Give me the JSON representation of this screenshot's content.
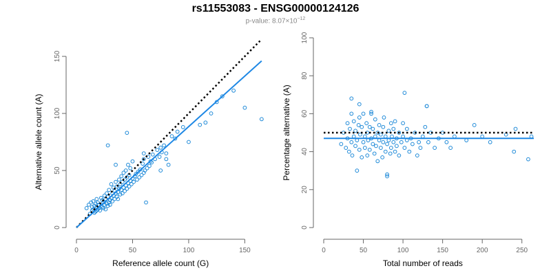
{
  "title": "rs11553083 - ENSG00000124126",
  "subtitle": {
    "prefix": "p-value: 8.07×10",
    "exponent": "−12"
  },
  "colors": {
    "points": "#1f8ad8",
    "fit": "#1e88e5",
    "reference": "#000000",
    "axis": "#666666"
  },
  "chart_data": [
    {
      "type": "scatter",
      "xlabel": "Reference allele count (G)",
      "ylabel": "Alternative allele count (A)",
      "xlim": [
        0,
        170
      ],
      "ylim": [
        0,
        150
      ],
      "xticks": [
        0,
        50,
        100,
        150
      ],
      "yticks": [
        0,
        50,
        100,
        150
      ],
      "series": [
        {
          "x": [
            9,
            11,
            12,
            13,
            14,
            14,
            15,
            15,
            16,
            16,
            17,
            17,
            18,
            18,
            18,
            19,
            19,
            20,
            20,
            21,
            22,
            22,
            23,
            23,
            24,
            24,
            25,
            25,
            26,
            26,
            27,
            27,
            28,
            28,
            29,
            29,
            30,
            30,
            31,
            31,
            32,
            32,
            33,
            33,
            34,
            34,
            35,
            35,
            36,
            36,
            37,
            37,
            38,
            38,
            39,
            39,
            40,
            40,
            41,
            41,
            42,
            42,
            43,
            43,
            44,
            44,
            45,
            45,
            46,
            46,
            47,
            47,
            48,
            48,
            49,
            50,
            50,
            51,
            52,
            53,
            54,
            55,
            56,
            57,
            58,
            59,
            60,
            60,
            61,
            62,
            63,
            64,
            65,
            66,
            67,
            68,
            70,
            72,
            74,
            75,
            76,
            78,
            80,
            82,
            85,
            88,
            90,
            95,
            100,
            110,
            115,
            120,
            125,
            130,
            140,
            150,
            165,
            28,
            35,
            45,
            60,
            75,
            80
          ],
          "y": [
            17,
            20,
            12,
            22,
            15,
            18,
            16,
            23,
            13,
            19,
            14,
            21,
            15,
            18,
            25,
            16,
            22,
            17,
            20,
            15,
            19,
            26,
            18,
            24,
            17,
            22,
            20,
            28,
            16,
            25,
            21,
            30,
            19,
            27,
            22,
            33,
            24,
            20,
            26,
            38,
            23,
            30,
            28,
            35,
            25,
            32,
            30,
            40,
            27,
            36,
            31,
            25,
            34,
            42,
            29,
            38,
            33,
            45,
            30,
            40,
            35,
            48,
            32,
            42,
            37,
            50,
            34,
            44,
            39,
            55,
            36,
            46,
            41,
            52,
            38,
            43,
            58,
            40,
            45,
            47,
            42,
            49,
            44,
            51,
            46,
            56,
            48,
            60,
            50,
            22,
            52,
            62,
            54,
            58,
            57,
            64,
            60,
            68,
            62,
            70,
            66,
            72,
            65,
            55,
            80,
            78,
            84,
            88,
            75,
            90,
            92,
            100,
            110,
            115,
            120,
            105,
            95,
            72,
            55,
            83,
            65,
            50,
            60
          ]
        }
      ],
      "reference_line": {
        "from": [
          0,
          0
        ],
        "to": [
          165,
          165
        ]
      },
      "fit_line": {
        "from": [
          0,
          0
        ],
        "to": [
          165,
          146
        ]
      }
    },
    {
      "type": "scatter",
      "xlabel": "Total number of reads",
      "ylabel": "Percentage alternative (A)",
      "xlim": [
        0,
        265
      ],
      "ylim": [
        0,
        100
      ],
      "xticks": [
        0,
        50,
        100,
        150,
        200,
        250
      ],
      "yticks": [
        0,
        20,
        40,
        60,
        80,
        100
      ],
      "series": [
        {
          "x": [
            22,
            25,
            28,
            30,
            30,
            32,
            33,
            35,
            35,
            36,
            38,
            38,
            40,
            40,
            42,
            42,
            44,
            45,
            45,
            46,
            48,
            48,
            50,
            50,
            52,
            52,
            54,
            55,
            55,
            56,
            58,
            58,
            60,
            60,
            62,
            62,
            64,
            65,
            65,
            66,
            68,
            68,
            70,
            70,
            72,
            72,
            74,
            75,
            75,
            76,
            78,
            78,
            80,
            80,
            82,
            82,
            84,
            85,
            85,
            86,
            88,
            88,
            90,
            90,
            92,
            92,
            95,
            95,
            98,
            100,
            100,
            102,
            105,
            105,
            108,
            110,
            112,
            115,
            118,
            120,
            122,
            125,
            128,
            130,
            132,
            135,
            140,
            145,
            150,
            155,
            160,
            165,
            180,
            190,
            200,
            210,
            230,
            240,
            242,
            258,
            262,
            35,
            45,
            60,
            102,
            130,
            80
          ],
          "y": [
            44,
            50,
            42,
            47,
            55,
            40,
            52,
            60,
            45,
            38,
            48,
            56,
            43,
            51,
            30,
            46,
            54,
            41,
            58,
            49,
            37,
            53,
            45,
            60,
            48,
            42,
            55,
            50,
            38,
            46,
            53,
            41,
            47,
            61,
            44,
            52,
            39,
            57,
            48,
            43,
            50,
            35,
            46,
            54,
            42,
            49,
            37,
            53,
            45,
            58,
            40,
            48,
            44,
            27,
            51,
            46,
            39,
            55,
            42,
            48,
            45,
            52,
            40,
            56,
            47,
            43,
            50,
            38,
            45,
            48,
            55,
            42,
            46,
            52,
            40,
            47,
            44,
            50,
            38,
            45,
            42,
            48,
            53,
            64,
            45,
            50,
            42,
            47,
            50,
            45,
            42,
            48,
            46,
            54,
            48,
            45,
            49,
            40,
            52,
            36,
            48,
            68,
            65,
            60,
            71,
            64,
            28
          ]
        }
      ],
      "reference_line": {
        "from": [
          0,
          50
        ],
        "to": [
          265,
          50
        ]
      },
      "fit_line": {
        "from": [
          0,
          47
        ],
        "to": [
          265,
          47
        ]
      }
    }
  ]
}
